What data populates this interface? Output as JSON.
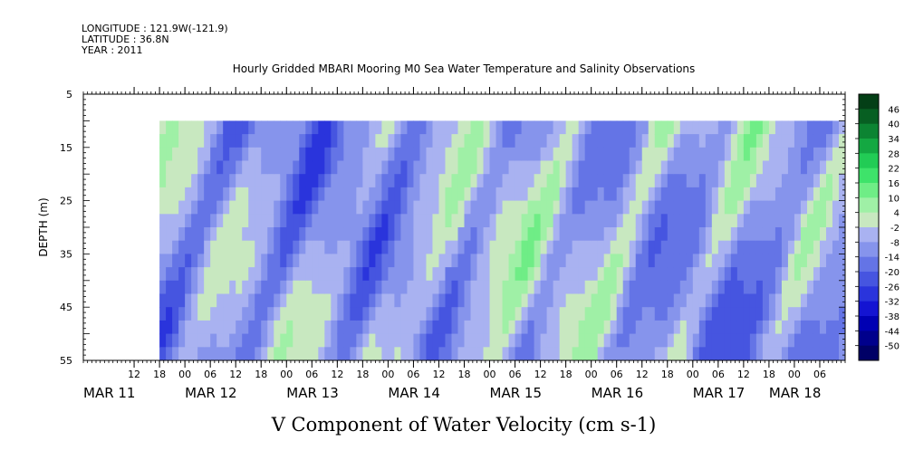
{
  "header": {
    "longitude": "LONGITUDE : 121.9W(-121.9)",
    "latitude": "LATITUDE : 36.8N",
    "year": "YEAR : 2011",
    "title": "Hourly Gridded MBARI Mooring M0 Sea Water Temperature and Salinity Observations"
  },
  "chart_data": {
    "type": "heatmap",
    "title": "Hourly Gridded MBARI Mooring M0 Sea Water Temperature and Salinity Observations",
    "xlabel": "V Component of Water Velocity (cm s-1)",
    "ylabel": "DEPTH (m)",
    "xlim_hours": [
      0,
      180
    ],
    "ylim": [
      5,
      55
    ],
    "y_inverted": true,
    "y_ticks": [
      "5",
      "15",
      "25",
      "35",
      "45",
      "55"
    ],
    "y_tick_values": [
      5,
      15,
      25,
      35,
      45,
      55
    ],
    "data_start_hour": 18,
    "data_end_hour": 180,
    "data_top_depth": 10,
    "x_hour_ticks": [
      {
        "h": 12,
        "label": "12"
      },
      {
        "h": 18,
        "label": "18"
      },
      {
        "h": 24,
        "label": "00"
      },
      {
        "h": 30,
        "label": "06"
      },
      {
        "h": 36,
        "label": "12"
      },
      {
        "h": 42,
        "label": "18"
      },
      {
        "h": 48,
        "label": "00"
      },
      {
        "h": 54,
        "label": "06"
      },
      {
        "h": 60,
        "label": "12"
      },
      {
        "h": 66,
        "label": "18"
      },
      {
        "h": 72,
        "label": "00"
      },
      {
        "h": 78,
        "label": "06"
      },
      {
        "h": 84,
        "label": "12"
      },
      {
        "h": 90,
        "label": "18"
      },
      {
        "h": 96,
        "label": "00"
      },
      {
        "h": 102,
        "label": "06"
      },
      {
        "h": 108,
        "label": "12"
      },
      {
        "h": 114,
        "label": "18"
      },
      {
        "h": 120,
        "label": "00"
      },
      {
        "h": 126,
        "label": "06"
      },
      {
        "h": 132,
        "label": "12"
      },
      {
        "h": 138,
        "label": "18"
      },
      {
        "h": 144,
        "label": "00"
      },
      {
        "h": 150,
        "label": "06"
      },
      {
        "h": 156,
        "label": "12"
      },
      {
        "h": 162,
        "label": "18"
      },
      {
        "h": 168,
        "label": "00"
      },
      {
        "h": 174,
        "label": "06"
      }
    ],
    "x_day_labels": [
      {
        "h": 0,
        "label": "MAR 11"
      },
      {
        "h": 24,
        "label": "MAR 12"
      },
      {
        "h": 48,
        "label": "MAR 13"
      },
      {
        "h": 72,
        "label": "MAR 14"
      },
      {
        "h": 96,
        "label": "MAR 15"
      },
      {
        "h": 120,
        "label": "MAR 16"
      },
      {
        "h": 144,
        "label": "MAR 17"
      },
      {
        "h": 162,
        "label": "MAR 18"
      }
    ],
    "colorbar": {
      "levels": [
        -50,
        -44,
        -38,
        -32,
        -26,
        -20,
        -14,
        -8,
        -2,
        4,
        10,
        16,
        22,
        28,
        34,
        40,
        46
      ],
      "labels": [
        "46",
        "40",
        "34",
        "28",
        "22",
        "16",
        "10",
        "4",
        "-2",
        "-8",
        "-14",
        "-20",
        "-26",
        "-32",
        "-38",
        "-44",
        "-50"
      ],
      "colors": [
        "#000066",
        "#00008c",
        "#0000b3",
        "#1414d2",
        "#2a34dc",
        "#4655e0",
        "#6474e6",
        "#8694ec",
        "#a9b2f1",
        "#c8e8c0",
        "#9ff0a6",
        "#6fed86",
        "#3ee36a",
        "#22cc55",
        "#14a842",
        "#0c8432",
        "#075f22",
        "#043f16"
      ]
    }
  }
}
